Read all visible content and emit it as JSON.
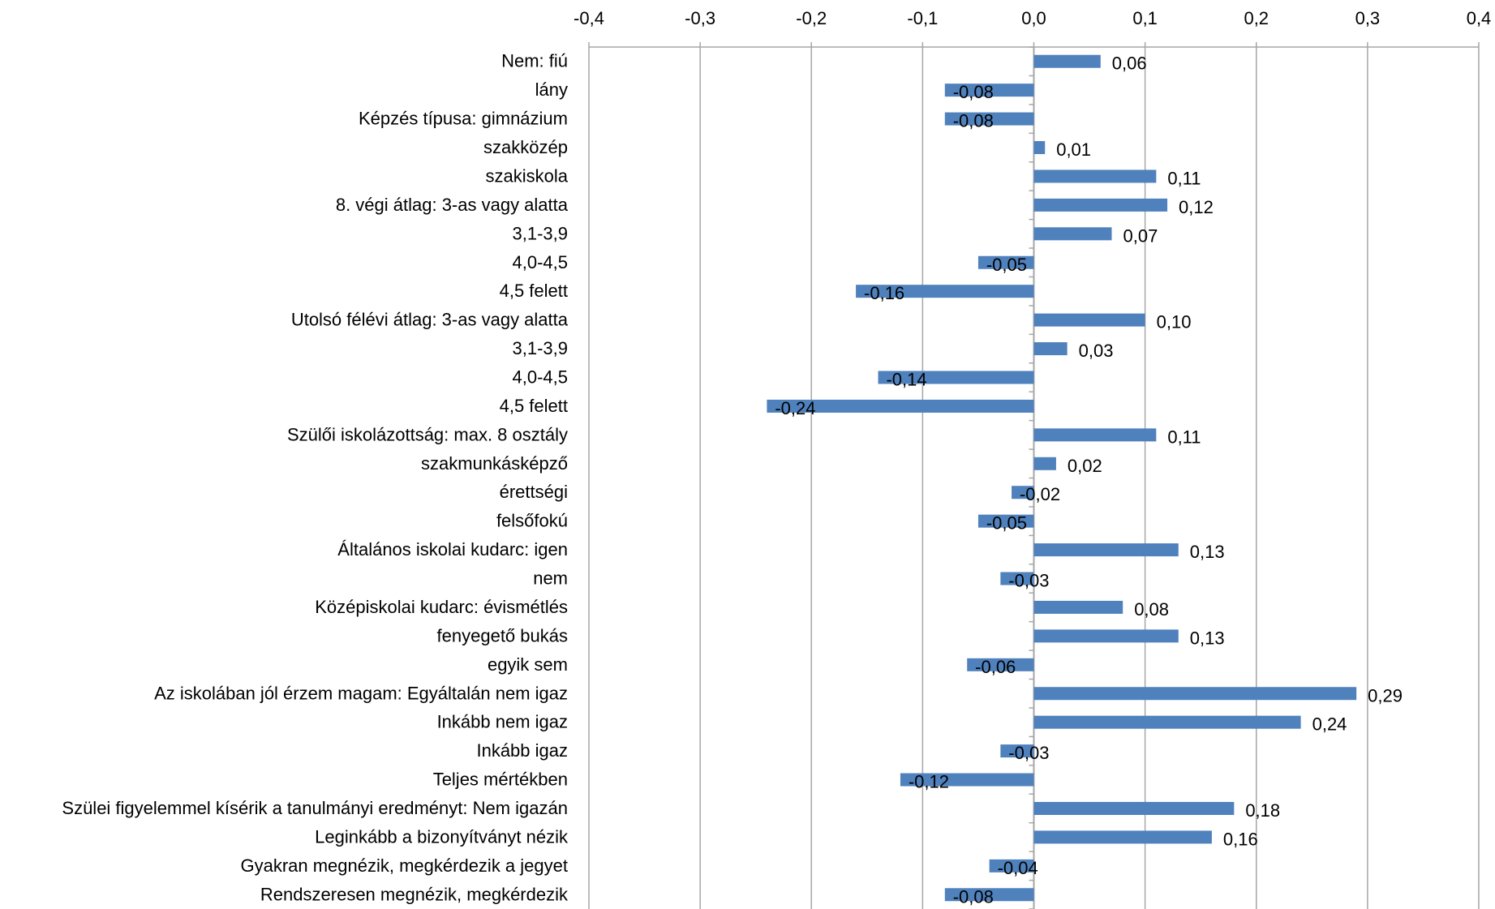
{
  "chart_data": {
    "type": "bar",
    "orientation": "horizontal",
    "title": "",
    "xlabel": "",
    "ylabel": "",
    "xlim": [
      -0.4,
      0.4
    ],
    "x_ticks": [
      -0.4,
      -0.3,
      -0.2,
      -0.1,
      0.0,
      0.1,
      0.2,
      0.3,
      0.4
    ],
    "x_tick_labels": [
      "-0,4",
      "-0,3",
      "-0,2",
      "-0,1",
      "0,0",
      "0,1",
      "0,2",
      "0,3",
      "0,4"
    ],
    "x_axis_position": "top",
    "grid": "vertical",
    "legend": "none",
    "colors": {
      "bar": "#4f81bd",
      "grid": "#a6a6a6",
      "text": "#000000"
    },
    "categories": [
      "Nem: fiú",
      "lány",
      "Képzés típusa: gimnázium",
      "szakközép",
      "szakiskola",
      "8. végi átlag: 3-as vagy alatta",
      "3,1-3,9",
      "4,0-4,5",
      "4,5 felett",
      "Utolsó félévi átlag: 3-as vagy alatta",
      "3,1-3,9",
      "4,0-4,5",
      "4,5 felett",
      "Szülői iskolázottság: max. 8 osztály",
      "szakmunkásképző",
      "érettségi",
      "felsőfokú",
      "Általános iskolai kudarc: igen",
      "nem",
      "Középiskolai kudarc: évismétlés",
      "fenyegető bukás",
      "egyik sem",
      "Az iskolában jól érzem magam: Egyáltalán nem igaz",
      "Inkább nem igaz",
      "Inkább igaz",
      "Teljes mértékben",
      "Szülei figyelemmel kísérik a tanulmányi eredményt: Nem igazán",
      "Leginkább a bizonyítványt nézik",
      "Gyakran megnézik, megkérdezik a jegyet",
      "Rendszeresen megnézik, megkérdezik"
    ],
    "values": [
      0.06,
      -0.08,
      -0.08,
      0.01,
      0.11,
      0.12,
      0.07,
      -0.05,
      -0.16,
      0.1,
      0.03,
      -0.14,
      -0.24,
      0.11,
      0.02,
      -0.02,
      -0.05,
      0.13,
      -0.03,
      0.08,
      0.13,
      -0.06,
      0.29,
      0.24,
      -0.03,
      -0.12,
      0.18,
      0.16,
      -0.04,
      -0.08
    ],
    "value_labels": [
      "0,06",
      "-0,08",
      "-0,08",
      "0,01",
      "0,11",
      "0,12",
      "0,07",
      "-0,05",
      "-0,16",
      "0,10",
      "0,03",
      "-0,14",
      "-0,24",
      "0,11",
      "0,02",
      "-0,02",
      "-0,05",
      "0,13",
      "-0,03",
      "0,08",
      "0,13",
      "-0,06",
      "0,29",
      "0,24",
      "-0,03",
      "-0,12",
      "0,18",
      "0,16",
      "-0,04",
      "-0,08"
    ]
  }
}
